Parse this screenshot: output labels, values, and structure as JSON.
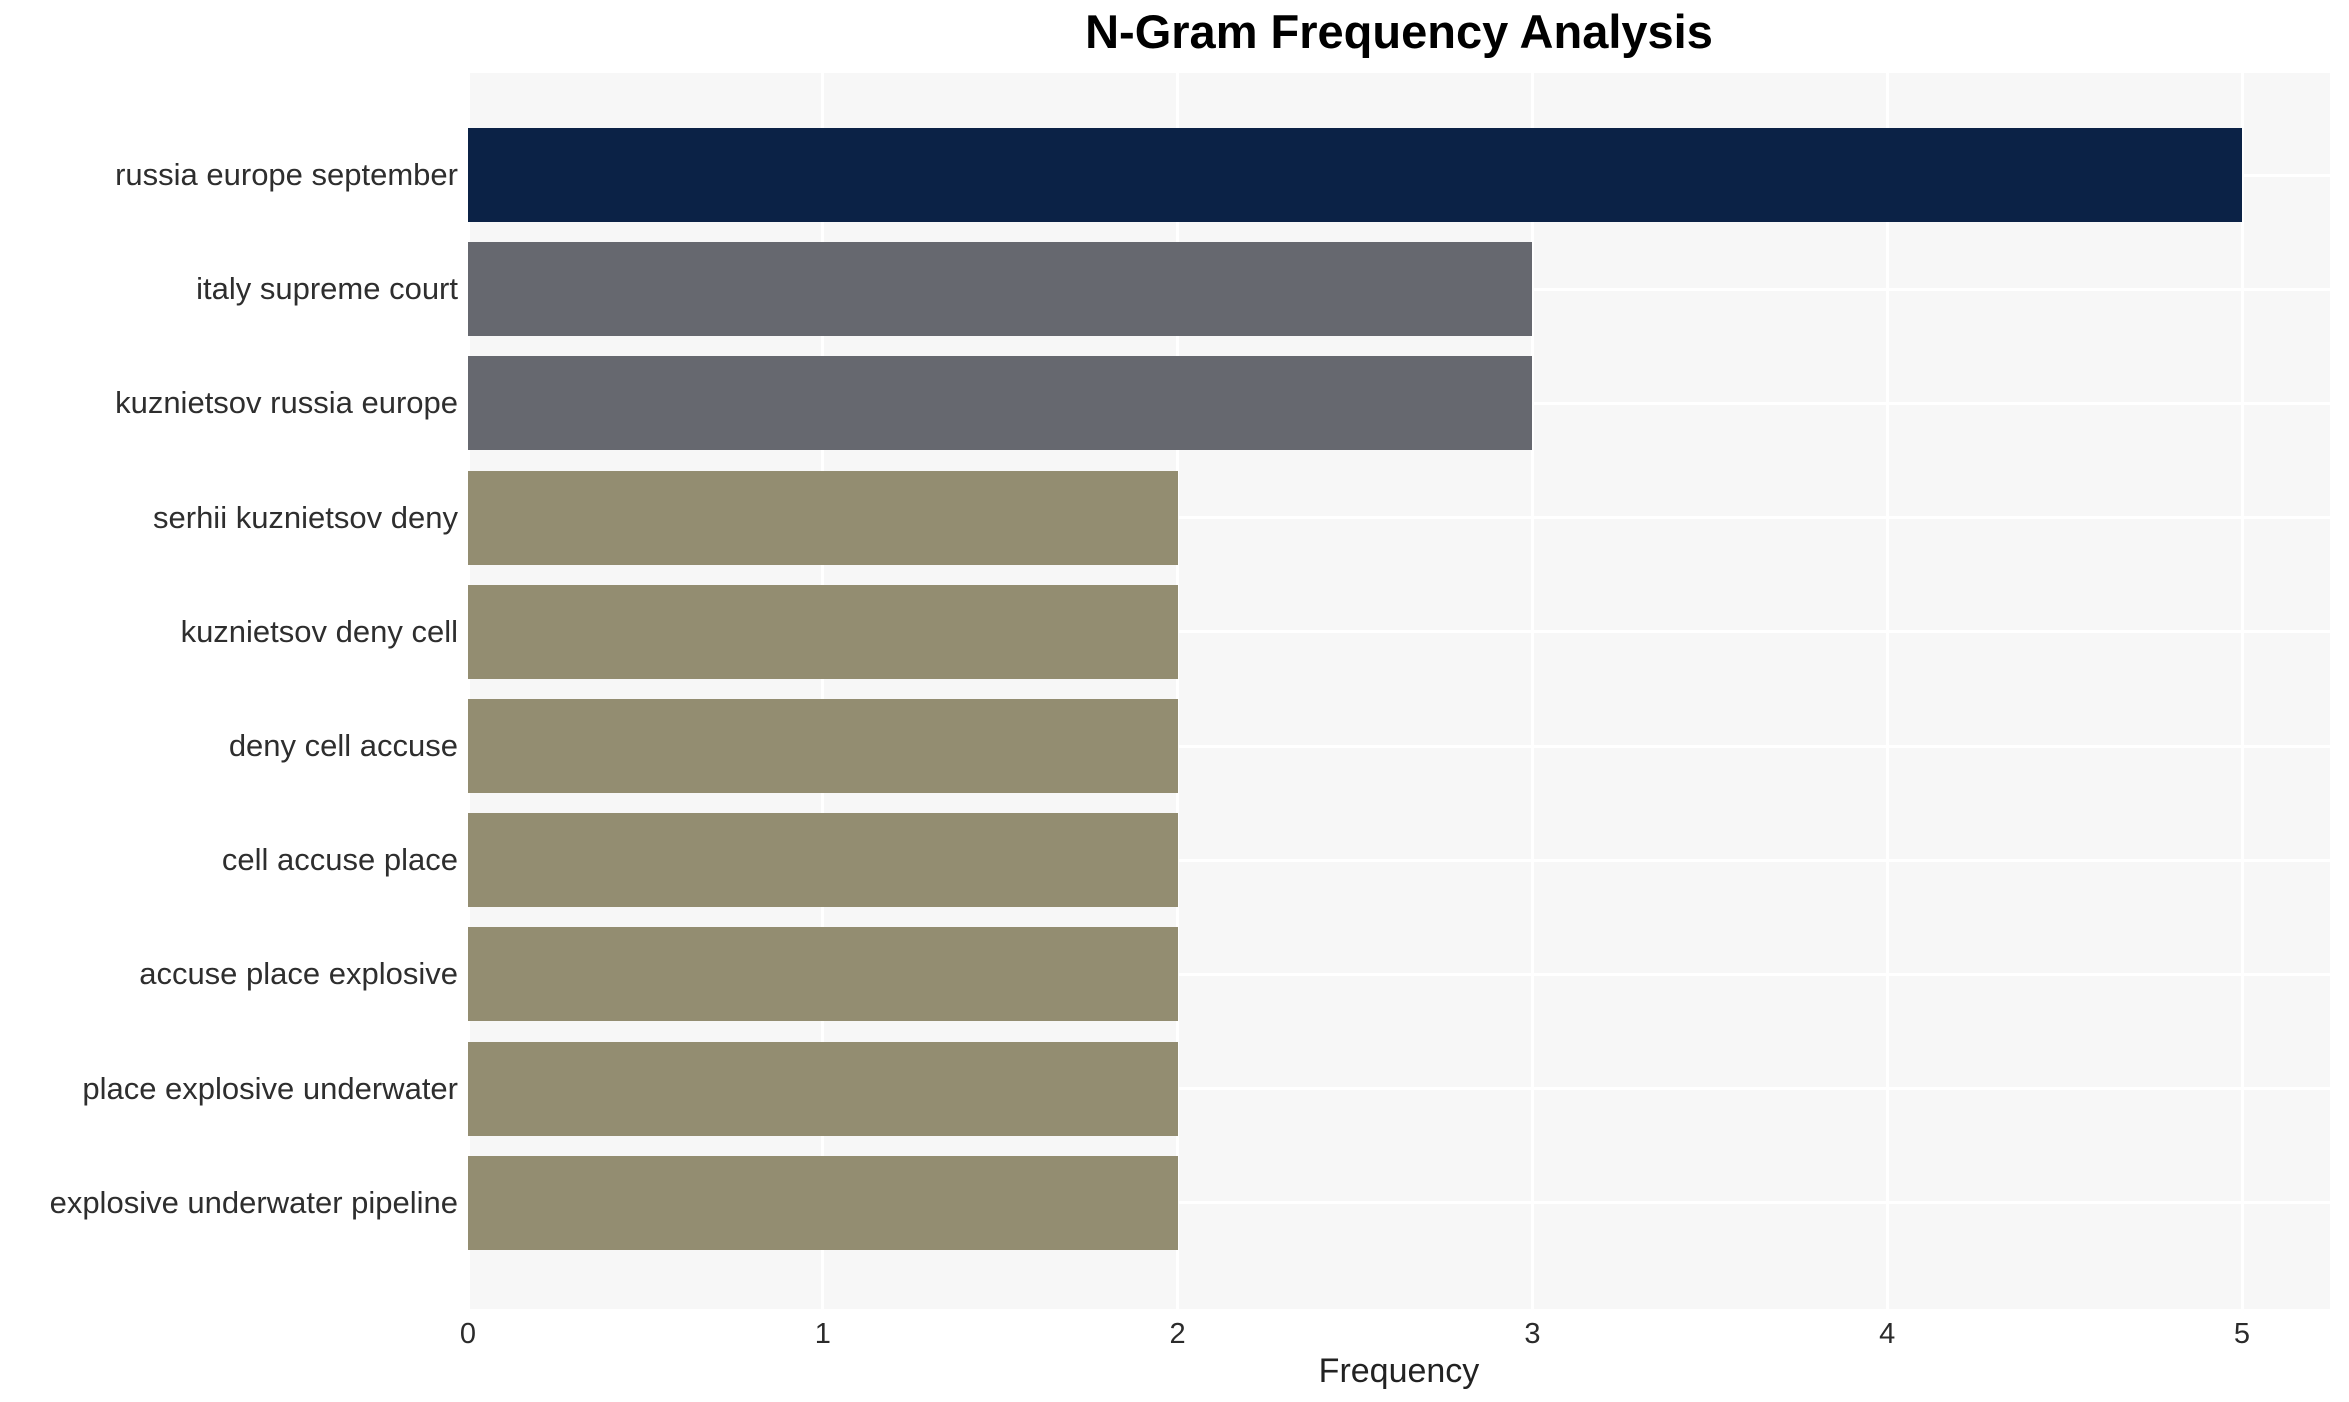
{
  "chart_data": {
    "type": "bar",
    "orientation": "horizontal",
    "title": "N-Gram Frequency Analysis",
    "xlabel": "Frequency",
    "ylabel": "",
    "xlim": [
      0,
      5.25
    ],
    "xticks": [
      0,
      1,
      2,
      3,
      4,
      5
    ],
    "grid": true,
    "legend": false,
    "categories": [
      "russia europe september",
      "italy supreme court",
      "kuznietsov russia europe",
      "serhii kuznietsov deny",
      "kuznietsov deny cell",
      "deny cell accuse",
      "cell accuse place",
      "accuse place explosive",
      "place explosive underwater",
      "explosive underwater pipeline"
    ],
    "values": [
      5,
      3,
      3,
      2,
      2,
      2,
      2,
      2,
      2,
      2
    ],
    "bar_colors": [
      "#0b2246",
      "#66686f",
      "#66686f",
      "#938d71",
      "#938d71",
      "#938d71",
      "#938d71",
      "#938d71",
      "#938d71",
      "#938d71"
    ],
    "colors": {
      "figure_bg": "#ffffff",
      "plot_bg": "#f7f7f7",
      "grid": "#ffffff",
      "title": "#000000",
      "category_label": "#2e2e2e",
      "tick_label": "#2b2b2b",
      "axis_label": "#222222"
    }
  }
}
